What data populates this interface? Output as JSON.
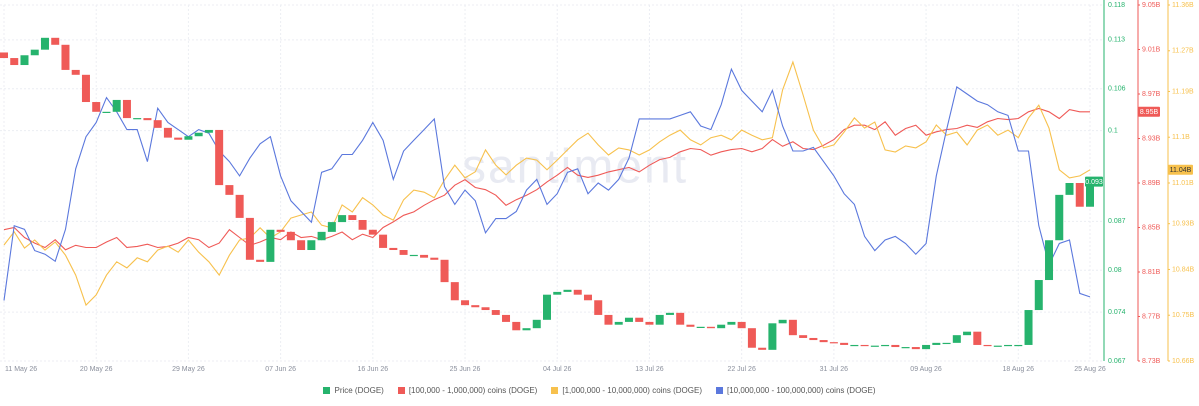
{
  "chart_data": {
    "type": "combo",
    "watermark": "santiment",
    "grid": true,
    "legend": "bottom",
    "x": [
      "11 May 26",
      null,
      null,
      null,
      null,
      null,
      null,
      null,
      null,
      "20 May 26",
      null,
      null,
      null,
      null,
      null,
      null,
      null,
      null,
      "29 May 26",
      null,
      null,
      null,
      null,
      null,
      null,
      null,
      null,
      "07 Jun 26",
      null,
      null,
      null,
      null,
      null,
      null,
      null,
      null,
      "16 Jun 26",
      null,
      null,
      null,
      null,
      null,
      null,
      null,
      null,
      "25 Jun 26",
      null,
      null,
      null,
      null,
      null,
      null,
      null,
      null,
      "04 Jul 26",
      null,
      null,
      null,
      null,
      null,
      null,
      null,
      null,
      "13 Jul 26",
      null,
      null,
      null,
      null,
      null,
      null,
      null,
      null,
      "22 Jul 26",
      null,
      null,
      null,
      null,
      null,
      null,
      null,
      null,
      "31 Jul 26",
      null,
      null,
      null,
      null,
      null,
      null,
      null,
      null,
      "09 Aug 26",
      null,
      null,
      null,
      null,
      null,
      null,
      null,
      null,
      "18 Aug 26",
      null,
      null,
      null,
      null,
      null,
      null,
      "25 Aug 26"
    ],
    "ylim": [
      0.067,
      0.118
    ],
    "yticks": [
      0.067,
      0.074,
      0.08,
      0.087,
      0.1,
      0.106,
      0.113,
      0.118
    ],
    "y2lim": [
      8730000000.0,
      9050000000.0
    ],
    "y2ticks": [
      {
        "value": 8730000000.0,
        "label": "8.73B"
      },
      {
        "value": 8770000000.0,
        "label": "8.77B"
      },
      {
        "value": 8810000000.0,
        "label": "8.81B"
      },
      {
        "value": 8850000000.0,
        "label": "8.85B"
      },
      {
        "value": 8890000000.0,
        "label": "8.89B"
      },
      {
        "value": 8930000000.0,
        "label": "8.93B"
      },
      {
        "value": 8970000000.0,
        "label": "8.97B"
      },
      {
        "value": 9010000000.0,
        "label": "9.01B"
      },
      {
        "value": 9050000000.0,
        "label": "9.05B"
      }
    ],
    "y3lim": [
      10660000000.0,
      11360000000.0
    ],
    "y3ticks": [
      {
        "value": 10660000000.0,
        "label": "10.66B"
      },
      {
        "value": 10750000000.0,
        "label": "10.75B"
      },
      {
        "value": 10840000000.0,
        "label": "10.84B"
      },
      {
        "value": 10930000000.0,
        "label": "10.93B"
      },
      {
        "value": 11010000000.0,
        "label": "11.01B"
      },
      {
        "value": 11100000000.0,
        "label": "11.1B"
      },
      {
        "value": 11190000000.0,
        "label": "11.19B"
      },
      {
        "value": 11270000000.0,
        "label": "11.27B"
      },
      {
        "value": 11360000000.0,
        "label": "11.36B"
      }
    ],
    "y4lim": [
      0,
      100
    ],
    "series": [
      {
        "name": "Price (DOGE)",
        "type": "candlestick",
        "color": "#26b36d",
        "down_color": "#ef5a57",
        "badge": "0.093",
        "open": [
          0.1112,
          0.1104,
          0.1094,
          0.1108,
          0.1116,
          0.1133,
          0.1123,
          0.1087,
          0.108,
          0.1041,
          0.1027,
          0.1027,
          0.1044,
          0.1018,
          0.1018,
          0.1015,
          0.1004,
          0.099,
          0.0987,
          0.0992,
          0.0997,
          0.1001,
          0.0922,
          0.0908,
          0.0875,
          0.0815,
          0.0812,
          0.0858,
          0.0855,
          0.0843,
          0.0829,
          0.0843,
          0.0855,
          0.0869,
          0.0879,
          0.0872,
          0.0858,
          0.0851,
          0.0832,
          0.0829,
          0.0822,
          0.0822,
          0.0818,
          0.0815,
          0.0783,
          0.0757,
          0.075,
          0.0747,
          0.0743,
          0.0736,
          0.0726,
          0.0714,
          0.0717,
          0.0729,
          0.0765,
          0.0769,
          0.0772,
          0.0765,
          0.0757,
          0.0736,
          0.0722,
          0.0726,
          0.0732,
          0.0726,
          0.0722,
          0.0736,
          0.0739,
          0.0722,
          0.0719,
          0.0719,
          0.0717,
          0.0722,
          0.0726,
          0.0717,
          0.0689,
          0.0686,
          0.0724,
          0.0729,
          0.0707,
          0.0703,
          0.07,
          0.0697,
          0.0696,
          0.0693,
          0.0693,
          0.0692,
          0.0692,
          0.0693,
          0.069,
          0.069,
          0.0687,
          0.0693,
          0.0696,
          0.0696,
          0.0707,
          0.0712,
          0.0693,
          0.0692,
          0.0692,
          0.0693,
          0.0693,
          0.0743,
          0.0786,
          0.0843,
          0.0908,
          0.0925,
          0.0891
        ],
        "close": [
          0.1104,
          0.1094,
          0.1108,
          0.1116,
          0.1133,
          0.1123,
          0.1087,
          0.108,
          0.1041,
          0.1027,
          0.1027,
          0.1044,
          0.1018,
          0.1018,
          0.1015,
          0.1004,
          0.099,
          0.0987,
          0.0992,
          0.0997,
          0.1001,
          0.0922,
          0.0908,
          0.0875,
          0.0815,
          0.0812,
          0.0858,
          0.0855,
          0.0843,
          0.0829,
          0.0843,
          0.0855,
          0.0869,
          0.0879,
          0.0872,
          0.0858,
          0.0851,
          0.0832,
          0.0829,
          0.0822,
          0.0822,
          0.0818,
          0.0815,
          0.0783,
          0.0757,
          0.075,
          0.0747,
          0.0743,
          0.0736,
          0.0726,
          0.0714,
          0.0717,
          0.0729,
          0.0765,
          0.0769,
          0.0772,
          0.0765,
          0.0757,
          0.0736,
          0.0722,
          0.0726,
          0.0732,
          0.0726,
          0.0722,
          0.0736,
          0.0739,
          0.0722,
          0.0719,
          0.0719,
          0.0717,
          0.0722,
          0.0726,
          0.0717,
          0.0689,
          0.0686,
          0.0724,
          0.0729,
          0.0707,
          0.0703,
          0.07,
          0.0697,
          0.0696,
          0.0693,
          0.0693,
          0.0692,
          0.0692,
          0.0693,
          0.069,
          0.069,
          0.0687,
          0.0693,
          0.0696,
          0.0696,
          0.0707,
          0.0712,
          0.0693,
          0.0692,
          0.0692,
          0.0693,
          0.0693,
          0.0743,
          0.0786,
          0.0843,
          0.0908,
          0.0925,
          0.0891,
          0.0927
        ]
      },
      {
        "name": "[100,000 - 1,000,000) coins (DOGE)",
        "type": "line",
        "axis": "y2",
        "color": "#ef5a57",
        "badge": "8.95B",
        "values": [
          8848000000.0,
          8850000000.0,
          8841000000.0,
          8836000000.0,
          8832000000.0,
          8839000000.0,
          8830000000.0,
          8834000000.0,
          8832000000.0,
          8832000000.0,
          8837000000.0,
          8841000000.0,
          8832000000.0,
          8833000000.0,
          8835000000.0,
          8832000000.0,
          8833000000.0,
          8836000000.0,
          8841000000.0,
          8839000000.0,
          8832000000.0,
          8836000000.0,
          8848000000.0,
          8841000000.0,
          8834000000.0,
          8837000000.0,
          8841000000.0,
          8839000000.0,
          8846000000.0,
          8841000000.0,
          8842000000.0,
          8839000000.0,
          8842000000.0,
          8846000000.0,
          8839000000.0,
          8844000000.0,
          8841000000.0,
          8850000000.0,
          8855000000.0,
          8861000000.0,
          8864000000.0,
          8870000000.0,
          8875000000.0,
          8879000000.0,
          8888000000.0,
          8893000000.0,
          8886000000.0,
          8884000000.0,
          8879000000.0,
          8870000000.0,
          8875000000.0,
          8879000000.0,
          8884000000.0,
          8891000000.0,
          8897000000.0,
          8904000000.0,
          8897000000.0,
          8895000000.0,
          8897000000.0,
          8900000000.0,
          8902000000.0,
          8904000000.0,
          8900000000.0,
          8906000000.0,
          8911000000.0,
          8913000000.0,
          8918000000.0,
          8921000000.0,
          8920000000.0,
          8915000000.0,
          8918000000.0,
          8920000000.0,
          8921000000.0,
          8918000000.0,
          8921000000.0,
          8929000000.0,
          8923000000.0,
          8927000000.0,
          8921000000.0,
          8920000000.0,
          8924000000.0,
          8929000000.0,
          8938000000.0,
          8942000000.0,
          8942000000.0,
          8938000000.0,
          8945000000.0,
          8933000000.0,
          8939000000.0,
          8942000000.0,
          8933000000.0,
          8936000000.0,
          8938000000.0,
          8939000000.0,
          8942000000.0,
          8940000000.0,
          8945000000.0,
          8948000000.0,
          8947000000.0,
          8948000000.0,
          8954000000.0,
          8957000000.0,
          8954000000.0,
          8948000000.0,
          8956000000.0,
          8954000000.0,
          8954000000.0
        ]
      },
      {
        "name": "[1,000,000 - 10,000,000) coins (DOGE)",
        "type": "line",
        "axis": "y3",
        "color": "#f7c14d",
        "badge": "11.04B",
        "values": [
          10888000000.0,
          10914000000.0,
          10882000000.0,
          10898000000.0,
          10878000000.0,
          10894000000.0,
          10868000000.0,
          10829000000.0,
          10770000000.0,
          10790000000.0,
          10829000000.0,
          10855000000.0,
          10843000000.0,
          10863000000.0,
          10855000000.0,
          10878000000.0,
          10886000000.0,
          10874000000.0,
          10898000000.0,
          10874000000.0,
          10855000000.0,
          10829000000.0,
          10868000000.0,
          10898000000.0,
          10902000000.0,
          10922000000.0,
          10902000000.0,
          10914000000.0,
          10941000000.0,
          10947000000.0,
          10953000000.0,
          10927000000.0,
          10922000000.0,
          10967000000.0,
          10953000000.0,
          10981000000.0,
          10967000000.0,
          10947000000.0,
          10937000000.0,
          10977000000.0,
          10996000000.0,
          10992000000.0,
          10981000000.0,
          11016000000.0,
          11045000000.0,
          11020000000.0,
          11032000000.0,
          11075000000.0,
          11045000000.0,
          11026000000.0,
          11045000000.0,
          11059000000.0,
          11055000000.0,
          11036000000.0,
          11055000000.0,
          11075000000.0,
          11095000000.0,
          11108000000.0,
          11085000000.0,
          11065000000.0,
          11079000000.0,
          11075000000.0,
          11065000000.0,
          11075000000.0,
          11091000000.0,
          11104000000.0,
          11114000000.0,
          11095000000.0,
          11085000000.0,
          11099000000.0,
          11104000000.0,
          11095000000.0,
          11114000000.0,
          11104000000.0,
          11095000000.0,
          11099000000.0,
          11193000000.0,
          11248000000.0,
          11183000000.0,
          11114000000.0,
          11079000000.0,
          11085000000.0,
          11110000000.0,
          11138000000.0,
          11118000000.0,
          11130000000.0,
          11075000000.0,
          11071000000.0,
          11083000000.0,
          11079000000.0,
          11091000000.0,
          11124000000.0,
          11104000000.0,
          11110000000.0,
          11085000000.0,
          11114000000.0,
          11124000000.0,
          11104000000.0,
          11114000000.0,
          11099000000.0,
          11138000000.0,
          11163000000.0,
          11118000000.0,
          11036000000.0,
          11020000000.0,
          11024000000.0,
          11036000000.0
        ]
      },
      {
        "name": "[10,000,000 - 100,000,000) coins (DOGE)",
        "type": "line",
        "axis": "y4",
        "color": "#5b78dd",
        "values": [
          17,
          38,
          37,
          31,
          30,
          28,
          37,
          54,
          63,
          67,
          74,
          70,
          65,
          65,
          56,
          71,
          67,
          65,
          63,
          65,
          64,
          59,
          56,
          52,
          57,
          61,
          63,
          52,
          45,
          42,
          39,
          53,
          54,
          58,
          58,
          62,
          67,
          62,
          51,
          59,
          62,
          65,
          68,
          49,
          44,
          48,
          45,
          36,
          40,
          40,
          42,
          48,
          51,
          44,
          47,
          53,
          54,
          47,
          50,
          48,
          51,
          57,
          68,
          68,
          68,
          68,
          69,
          70,
          66,
          65,
          72,
          82,
          76,
          73,
          70,
          76,
          66,
          59,
          59,
          60,
          56,
          52,
          47,
          44,
          35,
          31,
          34,
          35,
          33,
          30,
          33,
          52,
          65,
          77,
          75,
          73,
          72,
          70,
          69,
          59,
          59,
          38,
          27,
          33,
          34,
          19,
          18
        ]
      }
    ]
  }
}
